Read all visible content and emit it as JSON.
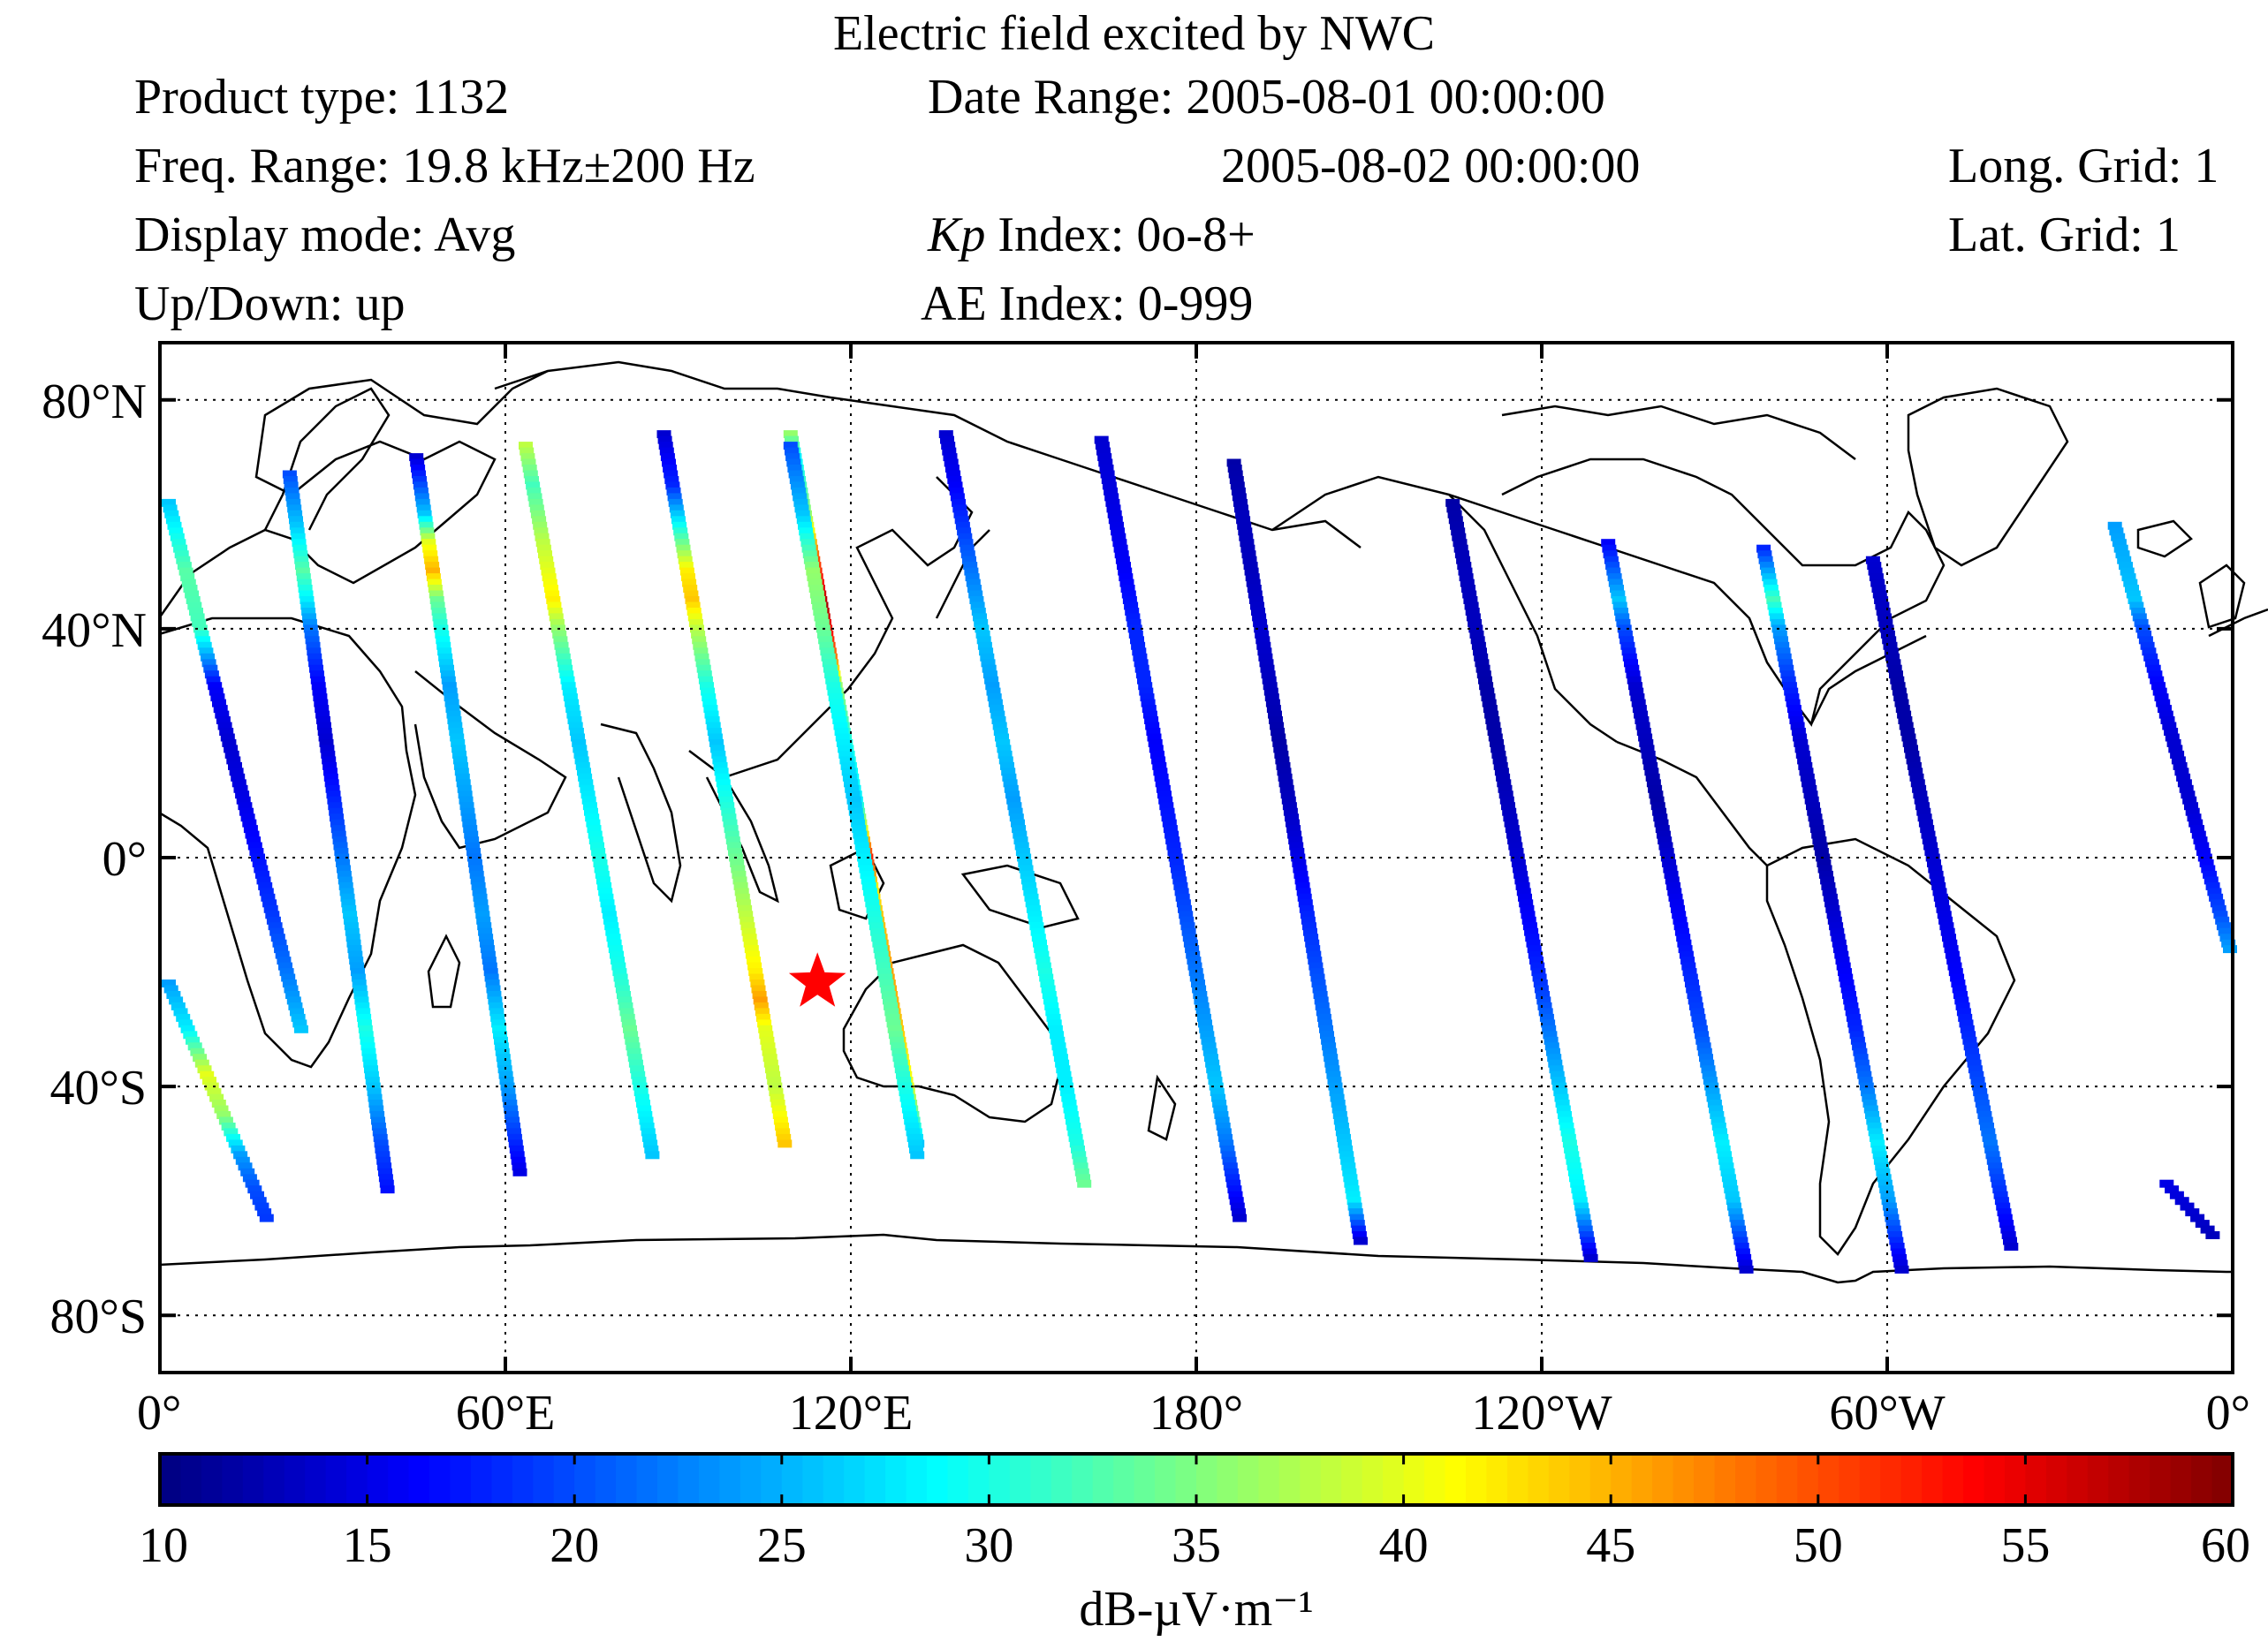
{
  "header": {
    "title": "Electric field excited by NWC",
    "product_type": "Product type: 1132",
    "freq_range": "Freq. Range: 19.8 kHz±200 Hz",
    "display_mode": "Display mode: Avg",
    "up_down": "Up/Down: up",
    "date_range_1": "Date Range: 2005-08-01 00:00:00",
    "date_range_2": "2005-08-02 00:00:00",
    "kp_label": "Kp",
    "kp_value": " Index: 0o-8+",
    "ae_index": "AE Index: 0-999",
    "long_grid": "Long. Grid: 1",
    "lat_grid": "Lat. Grid: 1"
  },
  "chart_data": {
    "type": "heatmap",
    "title": "Electric field excited by NWC",
    "x_ticks": [
      "0°",
      "60°E",
      "120°E",
      "180°",
      "120°W",
      "60°W",
      "0°"
    ],
    "y_ticks": [
      "80°N",
      "40°N",
      "0°",
      "40°S",
      "80°S"
    ],
    "xlim": [
      0,
      360
    ],
    "ylim": [
      -90,
      90
    ],
    "grid": true,
    "colorbar": {
      "label": "dB-µV·m⁻¹",
      "ticks": [
        "10",
        "15",
        "20",
        "25",
        "30",
        "35",
        "40",
        "45",
        "50",
        "55",
        "60"
      ],
      "range": [
        10,
        60
      ],
      "colormap": "jet"
    },
    "marker": {
      "name": "NWC transmitter",
      "lon": 114.2,
      "lat": -21.8,
      "symbol": "star",
      "color": "#ff0000"
    },
    "orbits": [
      {
        "lat_start": 62,
        "lat_end": -30,
        "lon_start": 1,
        "lon_end": 24,
        "values": [
          [
            62,
            26
          ],
          [
            50,
            33
          ],
          [
            40,
            32
          ],
          [
            35,
            24
          ],
          [
            30,
            16
          ],
          [
            20,
            14
          ],
          [
            10,
            15
          ],
          [
            0,
            17
          ],
          [
            -10,
            19
          ],
          [
            -20,
            22
          ],
          [
            -30,
            26
          ]
        ]
      },
      {
        "lat_start": -22,
        "lat_end": -63,
        "lon_start": 1,
        "lon_end": 18,
        "values": [
          [
            -22,
            24
          ],
          [
            -30,
            28
          ],
          [
            -38,
            40
          ],
          [
            -45,
            36
          ],
          [
            -52,
            24
          ],
          [
            -58,
            20
          ],
          [
            -63,
            19
          ]
        ]
      },
      {
        "lat_start": 67,
        "lat_end": -58,
        "lon_start": 22,
        "lon_end": 39,
        "values": [
          [
            67,
            20
          ],
          [
            58,
            26
          ],
          [
            50,
            33
          ],
          [
            45,
            28
          ],
          [
            40,
            22
          ],
          [
            30,
            16
          ],
          [
            20,
            14
          ],
          [
            10,
            18
          ],
          [
            0,
            22
          ],
          [
            -10,
            26
          ],
          [
            -20,
            24
          ],
          [
            -30,
            30
          ],
          [
            -40,
            26
          ],
          [
            -50,
            20
          ],
          [
            -58,
            17
          ]
        ]
      },
      {
        "lat_start": 70,
        "lat_end": -55,
        "lon_start": 44,
        "lon_end": 62,
        "values": [
          [
            70,
            14
          ],
          [
            60,
            26
          ],
          [
            55,
            40
          ],
          [
            50,
            45
          ],
          [
            45,
            34
          ],
          [
            40,
            30
          ],
          [
            30,
            24
          ],
          [
            20,
            26
          ],
          [
            10,
            24
          ],
          [
            0,
            22
          ],
          [
            -10,
            24
          ],
          [
            -20,
            22
          ],
          [
            -30,
            28
          ],
          [
            -40,
            24
          ],
          [
            -50,
            18
          ],
          [
            -55,
            15
          ]
        ]
      },
      {
        "lat_start": 72,
        "lat_end": -52,
        "lon_start": 63,
        "lon_end": 85,
        "values": [
          [
            72,
            38
          ],
          [
            65,
            32
          ],
          [
            55,
            38
          ],
          [
            50,
            40
          ],
          [
            45,
            42
          ],
          [
            40,
            36
          ],
          [
            30,
            28
          ],
          [
            20,
            26
          ],
          [
            10,
            28
          ],
          [
            0,
            30
          ],
          [
            -10,
            28
          ],
          [
            -20,
            30
          ],
          [
            -30,
            34
          ],
          [
            -40,
            30
          ],
          [
            -52,
            26
          ]
        ]
      },
      {
        "lat_start": 74,
        "lat_end": -50,
        "lon_start": 87,
        "lon_end": 108,
        "values": [
          [
            74,
            14
          ],
          [
            65,
            18
          ],
          [
            55,
            34
          ],
          [
            50,
            42
          ],
          [
            45,
            44
          ],
          [
            40,
            38
          ],
          [
            30,
            30
          ],
          [
            20,
            26
          ],
          [
            10,
            30
          ],
          [
            0,
            34
          ],
          [
            -10,
            38
          ],
          [
            -20,
            42
          ],
          [
            -25,
            46
          ],
          [
            -30,
            40
          ],
          [
            -40,
            38
          ],
          [
            -50,
            44
          ]
        ]
      },
      {
        "lat_start": 74,
        "lat_end": -50,
        "lon_start": 109,
        "lon_end": 131,
        "values": [
          [
            74,
            36
          ],
          [
            70,
            28
          ],
          [
            60,
            36
          ],
          [
            52,
            50
          ],
          [
            48,
            54
          ],
          [
            44,
            58
          ],
          [
            40,
            54
          ],
          [
            35,
            48
          ],
          [
            30,
            36
          ],
          [
            20,
            30
          ],
          [
            10,
            28
          ],
          [
            5,
            40
          ],
          [
            0,
            52
          ],
          [
            -5,
            42
          ],
          [
            -10,
            44
          ],
          [
            -20,
            46
          ],
          [
            -30,
            44
          ],
          [
            -40,
            40
          ],
          [
            -50,
            26
          ]
        ]
      },
      {
        "lat_start": 72,
        "lat_end": -52,
        "lon_start": 109,
        "lon_end": 131,
        "values": [
          [
            72,
            20
          ],
          [
            60,
            26
          ],
          [
            50,
            36
          ],
          [
            40,
            34
          ],
          [
            30,
            30
          ],
          [
            20,
            28
          ],
          [
            10,
            26
          ],
          [
            0,
            28
          ],
          [
            -10,
            30
          ],
          [
            -20,
            32
          ],
          [
            -30,
            34
          ],
          [
            -40,
            30
          ],
          [
            -52,
            26
          ]
        ]
      },
      {
        "lat_start": 74,
        "lat_end": -57,
        "lon_start": 136,
        "lon_end": 160,
        "values": [
          [
            74,
            14
          ],
          [
            65,
            16
          ],
          [
            55,
            20
          ],
          [
            45,
            24
          ],
          [
            40,
            26
          ],
          [
            30,
            24
          ],
          [
            20,
            26
          ],
          [
            10,
            24
          ],
          [
            0,
            26
          ],
          [
            -10,
            28
          ],
          [
            -20,
            30
          ],
          [
            -30,
            28
          ],
          [
            -40,
            28
          ],
          [
            -50,
            30
          ],
          [
            -57,
            34
          ]
        ]
      },
      {
        "lat_start": 73,
        "lat_end": -63,
        "lon_start": 163,
        "lon_end": 187,
        "values": [
          [
            73,
            14
          ],
          [
            60,
            15
          ],
          [
            50,
            16
          ],
          [
            40,
            18
          ],
          [
            30,
            18
          ],
          [
            20,
            16
          ],
          [
            10,
            17
          ],
          [
            0,
            18
          ],
          [
            -10,
            20
          ],
          [
            -20,
            22
          ],
          [
            -30,
            24
          ],
          [
            -40,
            26
          ],
          [
            -50,
            22
          ],
          [
            -63,
            14
          ]
        ]
      },
      {
        "lat_start": 69,
        "lat_end": -67,
        "lon_start": 186,
        "lon_end": 208,
        "values": [
          [
            69,
            12
          ],
          [
            60,
            13
          ],
          [
            50,
            13
          ],
          [
            40,
            14
          ],
          [
            30,
            13
          ],
          [
            20,
            12
          ],
          [
            10,
            13
          ],
          [
            0,
            15
          ],
          [
            -10,
            18
          ],
          [
            -20,
            20
          ],
          [
            -30,
            22
          ],
          [
            -40,
            24
          ],
          [
            -50,
            26
          ],
          [
            -60,
            28
          ],
          [
            -67,
            14
          ]
        ]
      },
      {
        "lat_start": 62,
        "lat_end": -70,
        "lon_start": 224,
        "lon_end": 248,
        "values": [
          [
            62,
            12
          ],
          [
            50,
            13
          ],
          [
            40,
            13
          ],
          [
            30,
            12
          ],
          [
            20,
            12
          ],
          [
            10,
            13
          ],
          [
            0,
            14
          ],
          [
            -10,
            16
          ],
          [
            -20,
            18
          ],
          [
            -30,
            22
          ],
          [
            -40,
            26
          ],
          [
            -50,
            30
          ],
          [
            -60,
            28
          ],
          [
            -70,
            14
          ]
        ]
      },
      {
        "lat_start": 55,
        "lat_end": -72,
        "lon_start": 251,
        "lon_end": 275,
        "values": [
          [
            55,
            16
          ],
          [
            45,
            26
          ],
          [
            40,
            20
          ],
          [
            30,
            14
          ],
          [
            20,
            13
          ],
          [
            10,
            12
          ],
          [
            0,
            14
          ],
          [
            -10,
            16
          ],
          [
            -20,
            18
          ],
          [
            -30,
            20
          ],
          [
            -40,
            24
          ],
          [
            -50,
            28
          ],
          [
            -60,
            26
          ],
          [
            -72,
            14
          ]
        ]
      },
      {
        "lat_start": 54,
        "lat_end": -72,
        "lon_start": 278,
        "lon_end": 302,
        "values": [
          [
            54,
            18
          ],
          [
            45,
            32
          ],
          [
            40,
            24
          ],
          [
            30,
            18
          ],
          [
            20,
            14
          ],
          [
            10,
            13
          ],
          [
            0,
            12
          ],
          [
            -10,
            14
          ],
          [
            -20,
            16
          ],
          [
            -30,
            18
          ],
          [
            -40,
            22
          ],
          [
            -50,
            28
          ],
          [
            -60,
            24
          ],
          [
            -72,
            14
          ]
        ]
      },
      {
        "lat_start": 52,
        "lat_end": -68,
        "lon_start": 297,
        "lon_end": 321,
        "values": [
          [
            52,
            14
          ],
          [
            40,
            13
          ],
          [
            30,
            12
          ],
          [
            20,
            12
          ],
          [
            10,
            13
          ],
          [
            0,
            14
          ],
          [
            -10,
            15
          ],
          [
            -20,
            16
          ],
          [
            -30,
            18
          ],
          [
            -40,
            20
          ],
          [
            -50,
            22
          ],
          [
            -60,
            18
          ],
          [
            -68,
            14
          ]
        ]
      },
      {
        "lat_start": 58,
        "lat_end": -16,
        "lon_start": 339,
        "lon_end": 359,
        "values": [
          [
            58,
            24
          ],
          [
            45,
            26
          ],
          [
            40,
            20
          ],
          [
            30,
            16
          ],
          [
            20,
            14
          ],
          [
            10,
            14
          ],
          [
            0,
            16
          ],
          [
            -10,
            20
          ],
          [
            -16,
            24
          ]
        ]
      },
      {
        "lat_start": -57,
        "lat_end": -66,
        "lon_start": 348,
        "lon_end": 356,
        "values": [
          [
            -57,
            15
          ],
          [
            -62,
            14
          ],
          [
            -66,
            13
          ]
        ]
      }
    ]
  }
}
